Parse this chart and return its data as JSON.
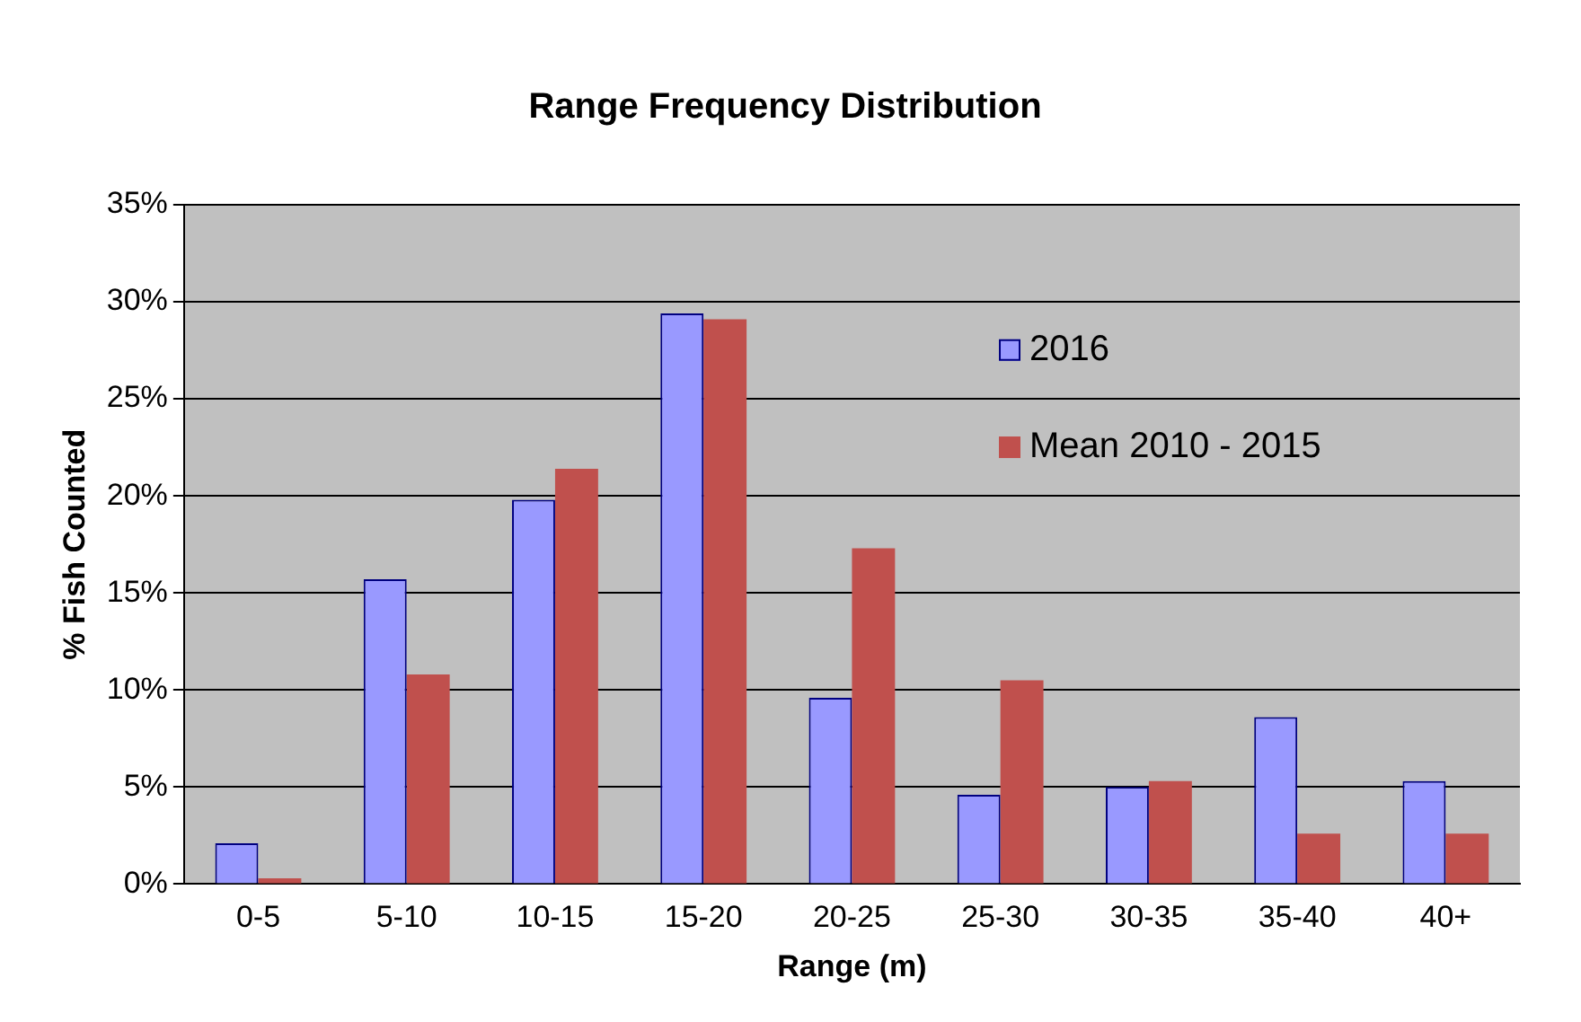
{
  "chart_data": {
    "type": "bar",
    "title": "Range Frequency Distribution",
    "xlabel": "Range (m)",
    "ylabel": "% Fish Counted",
    "categories": [
      "0-5",
      "5-10",
      "10-15",
      "15-20",
      "20-25",
      "25-30",
      "30-35",
      "35-40",
      "40+"
    ],
    "series": [
      {
        "name": "2016",
        "color": "#9999ff",
        "values": [
          2.1,
          15.7,
          19.8,
          29.4,
          9.6,
          4.6,
          5.0,
          8.6,
          5.3
        ]
      },
      {
        "name": "Mean 2010 - 2015",
        "color": "#c0504d",
        "values": [
          0.3,
          10.8,
          21.4,
          29.1,
          17.3,
          10.5,
          5.3,
          2.6,
          2.6
        ]
      }
    ],
    "ylim": [
      0,
      35
    ],
    "yticks": [
      {
        "value": 0,
        "label": "0%"
      },
      {
        "value": 5,
        "label": "5%"
      },
      {
        "value": 10,
        "label": "10%"
      },
      {
        "value": 15,
        "label": "15%"
      },
      {
        "value": 20,
        "label": "20%"
      },
      {
        "value": 25,
        "label": "25%"
      },
      {
        "value": 30,
        "label": "30%"
      },
      {
        "value": 35,
        "label": "35%"
      }
    ],
    "grid": "y",
    "legend": "top right"
  }
}
